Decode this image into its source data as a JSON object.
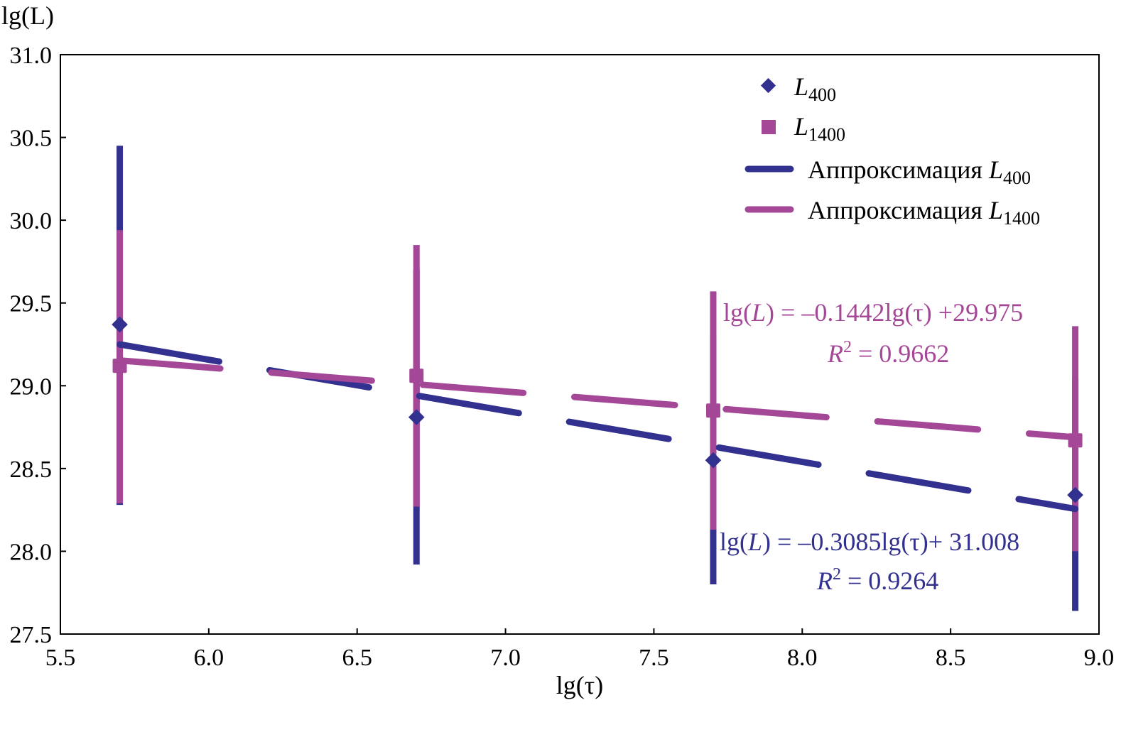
{
  "chart_data": {
    "type": "scatter",
    "xlabel": "lg(τ)",
    "ylabel": "lg(L)",
    "xlim": [
      5.5,
      9.0
    ],
    "ylim": [
      27.5,
      31.0
    ],
    "xticks": [
      "5.5",
      "6.0",
      "6.5",
      "7.0",
      "7.5",
      "8.0",
      "8.5",
      "9.0"
    ],
    "yticks": [
      "27.5",
      "28.0",
      "28.5",
      "29.0",
      "29.5",
      "30.0",
      "30.5",
      "31.0"
    ],
    "grid": false,
    "legend_placement": "top-right",
    "series": [
      {
        "name": "L400",
        "name_main": "L",
        "name_sub": "400",
        "marker": "diamond",
        "color": "#33318f",
        "x": [
          5.7,
          6.7,
          7.7,
          8.92
        ],
        "y": [
          29.37,
          28.81,
          28.55,
          28.34
        ],
        "err_high": [
          30.45,
          29.7,
          29.31,
          29.04
        ],
        "err_low": [
          28.28,
          27.92,
          27.8,
          27.64
        ]
      },
      {
        "name": "L1400",
        "name_main": "L",
        "name_sub": "1400",
        "marker": "square",
        "color": "#a54797",
        "x": [
          5.7,
          6.7,
          7.7,
          8.92
        ],
        "y": [
          29.12,
          29.06,
          28.85,
          28.67
        ],
        "err_high": [
          29.94,
          29.85,
          29.57,
          29.36
        ],
        "err_low": [
          28.29,
          28.27,
          28.13,
          28.0
        ]
      }
    ],
    "fits": [
      {
        "name_prefix": "Аппроксимация ",
        "name_main": "L",
        "name_sub": "400",
        "color": "#33318f",
        "slope": -0.3085,
        "intercept": 31.008,
        "x_range": [
          5.7,
          8.92
        ],
        "eq_a": "lg(",
        "eq_b": "L",
        "eq_c": ") = –0.3085lg(τ)+ 31.008",
        "r2_a": "R",
        "r2_b": "2",
        "r2_c": " = 0.9264"
      },
      {
        "name_prefix": "Аппроксимация ",
        "name_main": "L",
        "name_sub": "1400",
        "color": "#a54797",
        "slope": -0.1442,
        "intercept": 29.975,
        "x_range": [
          5.7,
          8.92
        ],
        "eq_a": "lg(",
        "eq_b": "L",
        "eq_c": ") = –0.1442lg(τ) +29.975",
        "r2_a": "R",
        "r2_b": "2",
        "r2_c": " = 0.9662"
      }
    ]
  }
}
